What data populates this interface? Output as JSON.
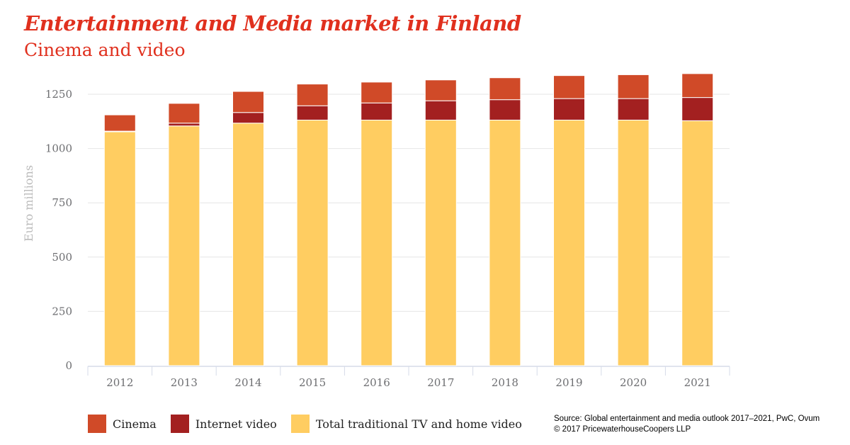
{
  "title": "Entertainment and Media market in Finland",
  "subtitle": "Cinema and video",
  "source_line1": "Source: Global entertainment and media outlook 2017–2021, PwC, Ovum",
  "source_line2": "© 2017 PricewaterhouseCoopers LLP",
  "chart_data": {
    "type": "bar",
    "stacked": true,
    "title": "Entertainment and Media market in Finland",
    "subtitle": "Cinema and video",
    "ylabel": "Euro millions",
    "xlabel": "",
    "ylim": [
      0,
      1250
    ],
    "yticks": [
      0,
      250,
      500,
      750,
      1000,
      1250
    ],
    "grid": true,
    "legend": "bottom-left",
    "categories": [
      "2012",
      "2013",
      "2014",
      "2015",
      "2016",
      "2017",
      "2018",
      "2019",
      "2020",
      "2021"
    ],
    "series": [
      {
        "name": "Total traditional TV and home video",
        "color": "#ffcd61",
        "values": [
          1077,
          1104,
          1117,
          1131,
          1131,
          1131,
          1131,
          1131,
          1131,
          1128
        ]
      },
      {
        "name": "Internet video",
        "color": "#a32020",
        "values": [
          3,
          13,
          49,
          66,
          79,
          89,
          94,
          99,
          99,
          107
        ]
      },
      {
        "name": "Cinema",
        "color": "#d04a28",
        "values": [
          75,
          91,
          97,
          100,
          96,
          96,
          101,
          106,
          110,
          110
        ]
      }
    ],
    "legend_order": [
      "Cinema",
      "Internet video",
      "Total traditional TV and home video"
    ]
  }
}
